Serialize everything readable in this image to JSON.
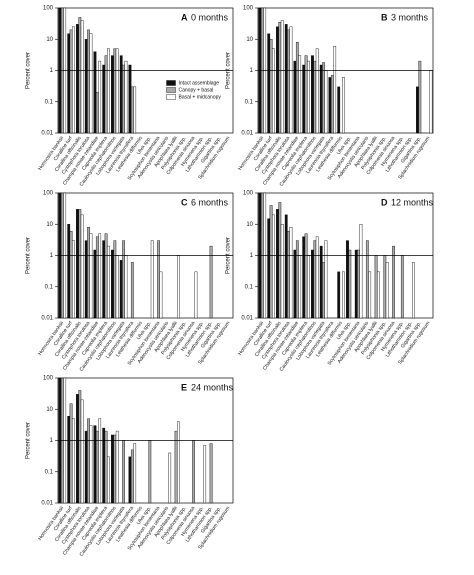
{
  "chart_data": [
    {
      "type": "bar",
      "panel": "A",
      "title": "0 months",
      "ylabel": "Percent cover",
      "log_scale": true,
      "ylim": [
        0.01,
        100
      ],
      "yticks": [
        0.01,
        0.1,
        1,
        10,
        100
      ],
      "reference_line": 1,
      "legend": "center-right",
      "categories": [
        "Hormosira banksii",
        "Coralline turf",
        "Corallina officinalis",
        "Cystophora torulosa",
        "Champia novae-zelandiae",
        "Capreolia implexa",
        "Caulocystis cephalornithos",
        "Lobophora variegata",
        "Laurencia thyrsifera",
        "Leathesia difformis",
        "Ulva spp.",
        "Scytosiphon lomentaria",
        "Adenocystis utricularis",
        "Apophlaea lyallii",
        "Polysiphonia spp.",
        "Colpomenia sinuosa",
        "Hymenena spp.",
        "Lithothamnion spp.",
        "Gigartina spp.",
        "Splachnidium rugosum"
      ],
      "series": [
        {
          "name": "Intact assemblage",
          "color": "#111111",
          "values": [
            100,
            15,
            30,
            10,
            4,
            1.5,
            3,
            3,
            1.5,
            null,
            null,
            null,
            null,
            null,
            null,
            null,
            null,
            null,
            null,
            null
          ]
        },
        {
          "name": "Canopy + basal",
          "color": "#aaaaaa",
          "values": [
            100,
            20,
            50,
            20,
            0.2,
            3,
            5,
            1.5,
            0.3,
            null,
            null,
            null,
            null,
            null,
            null,
            null,
            null,
            null,
            null,
            null
          ]
        },
        {
          "name": "Basal + midcanopy",
          "color": "#ffffff",
          "values": [
            100,
            25,
            40,
            15,
            2,
            5,
            5,
            2,
            0.3,
            null,
            null,
            null,
            null,
            null,
            null,
            null,
            null,
            null,
            null,
            null
          ]
        }
      ]
    },
    {
      "type": "bar",
      "panel": "B",
      "title": "3 months",
      "ylabel": "Percent cover",
      "log_scale": true,
      "ylim": [
        0.01,
        100
      ],
      "yticks": [
        0.01,
        0.1,
        1,
        10,
        100
      ],
      "reference_line": 1,
      "categories": [
        "Hormosira banksii",
        "Coralline turf",
        "Corallina officinalis",
        "Cystophora torulosa",
        "Champia novae-zelandiae",
        "Capreolia implexa",
        "Caulocystis cephalornithos",
        "Lobophora variegata",
        "Laurencia thyrsifera",
        "Leathesia difformis",
        "Ulva spp.",
        "Scytosiphon lomentaria",
        "Adenocystis utricularis",
        "Apophlaea lyallii",
        "Polysiphonia spp.",
        "Colpomenia sinuosa",
        "Hymenena spp.",
        "Lithothamnion spp.",
        "Gigartina spp.",
        "Splachnidium rugosum"
      ],
      "series": [
        {
          "color": "#111111",
          "values": [
            100,
            15,
            25,
            30,
            2,
            1.5,
            3,
            1.5,
            0.6,
            0.3,
            null,
            null,
            null,
            null,
            null,
            null,
            null,
            null,
            0.3,
            null
          ]
        },
        {
          "color": "#aaaaaa",
          "values": [
            100,
            10,
            35,
            20,
            8,
            3,
            2,
            1.8,
            0.7,
            null,
            null,
            null,
            null,
            null,
            null,
            null,
            null,
            null,
            2,
            null
          ]
        },
        {
          "color": "#ffffff",
          "values": [
            100,
            5,
            40,
            25,
            3,
            2,
            5,
            1,
            6,
            0.6,
            null,
            null,
            null,
            null,
            null,
            null,
            null,
            null,
            null,
            1
          ]
        }
      ]
    },
    {
      "type": "bar",
      "panel": "C",
      "title": "6 months",
      "ylabel": "Percent cover",
      "log_scale": true,
      "ylim": [
        0.01,
        100
      ],
      "yticks": [
        0.01,
        0.1,
        1,
        10,
        100
      ],
      "reference_line": 1,
      "categories": [
        "Hormosira banksii",
        "Coralline turf",
        "Corallina officinalis",
        "Cystophora torulosa",
        "Champia novae-zelandiae",
        "Capreolia implexa",
        "Caulocystis cephalornithos",
        "Lobophora variegata",
        "Laurencia thyrsifera",
        "Leathesia difformis",
        "Ulva spp.",
        "Scytosiphon lomentaria",
        "Adenocystis utricularis",
        "Apophlaea lyallii",
        "Polysiphonia spp.",
        "Colpomenia sinuosa",
        "Hymenena spp.",
        "Lithothamnion spp.",
        "Gigartina spp.",
        "Splachnidium rugosum"
      ],
      "series": [
        {
          "color": "#111111",
          "values": [
            100,
            10,
            30,
            3,
            1.5,
            3,
            1.5,
            0.7,
            null,
            null,
            null,
            null,
            null,
            null,
            null,
            null,
            null,
            null,
            null,
            null
          ]
        },
        {
          "color": "#aaaaaa",
          "values": [
            100,
            6,
            30,
            8,
            4,
            5,
            3,
            3,
            0.6,
            null,
            null,
            3,
            null,
            null,
            null,
            null,
            null,
            2,
            null,
            null
          ]
        },
        {
          "color": "#ffffff",
          "values": [
            100,
            3,
            20,
            5,
            5,
            2,
            1,
            1,
            null,
            null,
            3,
            0.3,
            null,
            1,
            null,
            0.3,
            null,
            null,
            null,
            null
          ]
        }
      ]
    },
    {
      "type": "bar",
      "panel": "D",
      "title": "12 months",
      "ylabel": "Percent cover",
      "log_scale": true,
      "ylim": [
        0.01,
        100
      ],
      "yticks": [
        0.01,
        0.1,
        1,
        10,
        100
      ],
      "reference_line": 1,
      "categories": [
        "Hormosira banksii",
        "Coralline turf",
        "Corallina officinalis",
        "Cystophora torulosa",
        "Champia novae-zelandiae",
        "Capreolia implexa",
        "Caulocystis cephalornithos",
        "Lobophora variegata",
        "Laurencia thyrsifera",
        "Leathesia difformis",
        "Ulva spp.",
        "Scytosiphon lomentaria",
        "Adenocystis utricularis",
        "Apophlaea lyallii",
        "Polysiphonia spp.",
        "Colpomenia sinuosa",
        "Hymenena spp.",
        "Lithothamnion spp.",
        "Gigartina spp.",
        "Splachnidium rugosum"
      ],
      "series": [
        {
          "color": "#111111",
          "values": [
            100,
            15,
            30,
            20,
            1.5,
            4,
            1.5,
            2,
            null,
            0.3,
            3,
            1.5,
            null,
            null,
            null,
            null,
            null,
            null,
            null,
            null
          ]
        },
        {
          "color": "#aaaaaa",
          "values": [
            100,
            40,
            50,
            6,
            3,
            5,
            3,
            0.6,
            null,
            null,
            1.5,
            1.5,
            3,
            1,
            1,
            2,
            1,
            null,
            null,
            null
          ]
        },
        {
          "color": "#ffffff",
          "values": [
            100,
            20,
            10,
            8,
            1,
            1,
            4,
            3,
            null,
            0.3,
            null,
            10,
            0.3,
            0.3,
            0.6,
            null,
            null,
            0.6,
            null,
            null
          ]
        }
      ]
    },
    {
      "type": "bar",
      "panel": "E",
      "title": "24 months",
      "ylabel": "Percent cover",
      "log_scale": true,
      "ylim": [
        0.01,
        100
      ],
      "yticks": [
        0.01,
        0.1,
        1,
        10,
        100
      ],
      "reference_line": 1,
      "categories": [
        "Hormosira banksii",
        "Coralline turf",
        "Corallina officinalis",
        "Cystophora torulosa",
        "Champia novae-zelandiae",
        "Capreolia implexa",
        "Caulocystis cephalornithos",
        "Lobophora variegata",
        "Laurencia thyrsifera",
        "Leathesia difformis",
        "Ulva spp.",
        "Scytosiphon lomentaria",
        "Adenocystis utricularis",
        "Apophlaea lyallii",
        "Polysiphonia spp.",
        "Colpomenia sinuosa",
        "Hymenena spp.",
        "Lithothamnion spp.",
        "Gigartina spp.",
        "Splachnidium rugosum"
      ],
      "series": [
        {
          "color": "#111111",
          "values": [
            100,
            6,
            30,
            2,
            3,
            2.5,
            1.5,
            null,
            0.3,
            null,
            null,
            null,
            null,
            null,
            null,
            null,
            null,
            null,
            null,
            null
          ]
        },
        {
          "color": "#aaaaaa",
          "values": [
            100,
            15,
            40,
            5,
            2,
            2,
            1.5,
            1,
            0.5,
            null,
            1,
            null,
            null,
            2,
            null,
            1,
            null,
            0.8,
            null,
            null
          ]
        },
        {
          "color": "#ffffff",
          "values": [
            100,
            5,
            20,
            3,
            5,
            0.3,
            2,
            null,
            0.8,
            null,
            null,
            null,
            0.4,
            4,
            null,
            null,
            0.7,
            null,
            null,
            null
          ]
        }
      ]
    }
  ]
}
